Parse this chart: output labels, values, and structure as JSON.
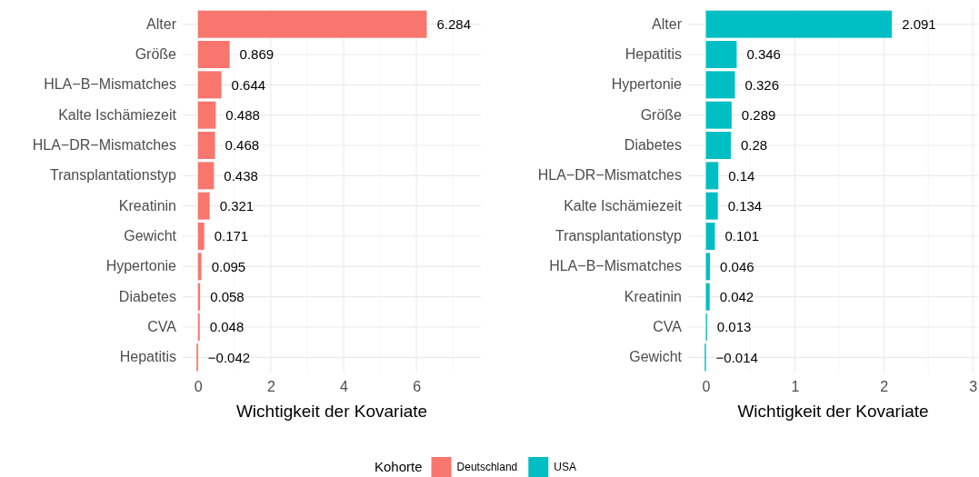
{
  "chart_data": [
    {
      "type": "bar",
      "orientation": "horizontal",
      "xlabel": "Wichtigkeit der Kovariate",
      "legend_title": "Kohorte",
      "legend": "bottom",
      "grid": true,
      "data_labels": true,
      "categories": [
        "Alter",
        "Größe",
        "HLA−B−Mismatches",
        "Kalte Ischämiezeit",
        "HLA−DR−Mismatches",
        "Transplantationstyp",
        "Kreatinin",
        "Gewicht",
        "Hypertonie",
        "Diabetes",
        "CVA",
        "Hepatitis"
      ],
      "xlim": [
        -0.42,
        7.77
      ],
      "xticks": [
        0,
        2,
        4,
        6
      ],
      "series": [
        {
          "name": "Deutschland",
          "color": "#f8766d",
          "values": [
            6.284,
            0.869,
            0.644,
            0.488,
            0.468,
            0.438,
            0.321,
            0.171,
            0.095,
            0.058,
            0.048,
            -0.042
          ]
        }
      ]
    },
    {
      "type": "bar",
      "orientation": "horizontal",
      "xlabel": "Wichtigkeit der Kovariate",
      "legend": "bottom",
      "grid": true,
      "data_labels": true,
      "categories": [
        "Alter",
        "Hepatitis",
        "Hypertonie",
        "Größe",
        "Diabetes",
        "HLA−DR−Mismatches",
        "Kalte Ischämiezeit",
        "Transplantationstyp",
        "HLA−B−Mismatches",
        "Kreatinin",
        "CVA",
        "Gewicht"
      ],
      "xlim": [
        -0.2,
        3.06
      ],
      "xticks": [
        0,
        1,
        2,
        3
      ],
      "series": [
        {
          "name": "USA",
          "color": "#00bfc4",
          "values": [
            2.091,
            0.346,
            0.326,
            0.289,
            0.28,
            0.14,
            0.134,
            0.101,
            0.046,
            0.042,
            0.013,
            -0.014
          ]
        }
      ]
    }
  ]
}
